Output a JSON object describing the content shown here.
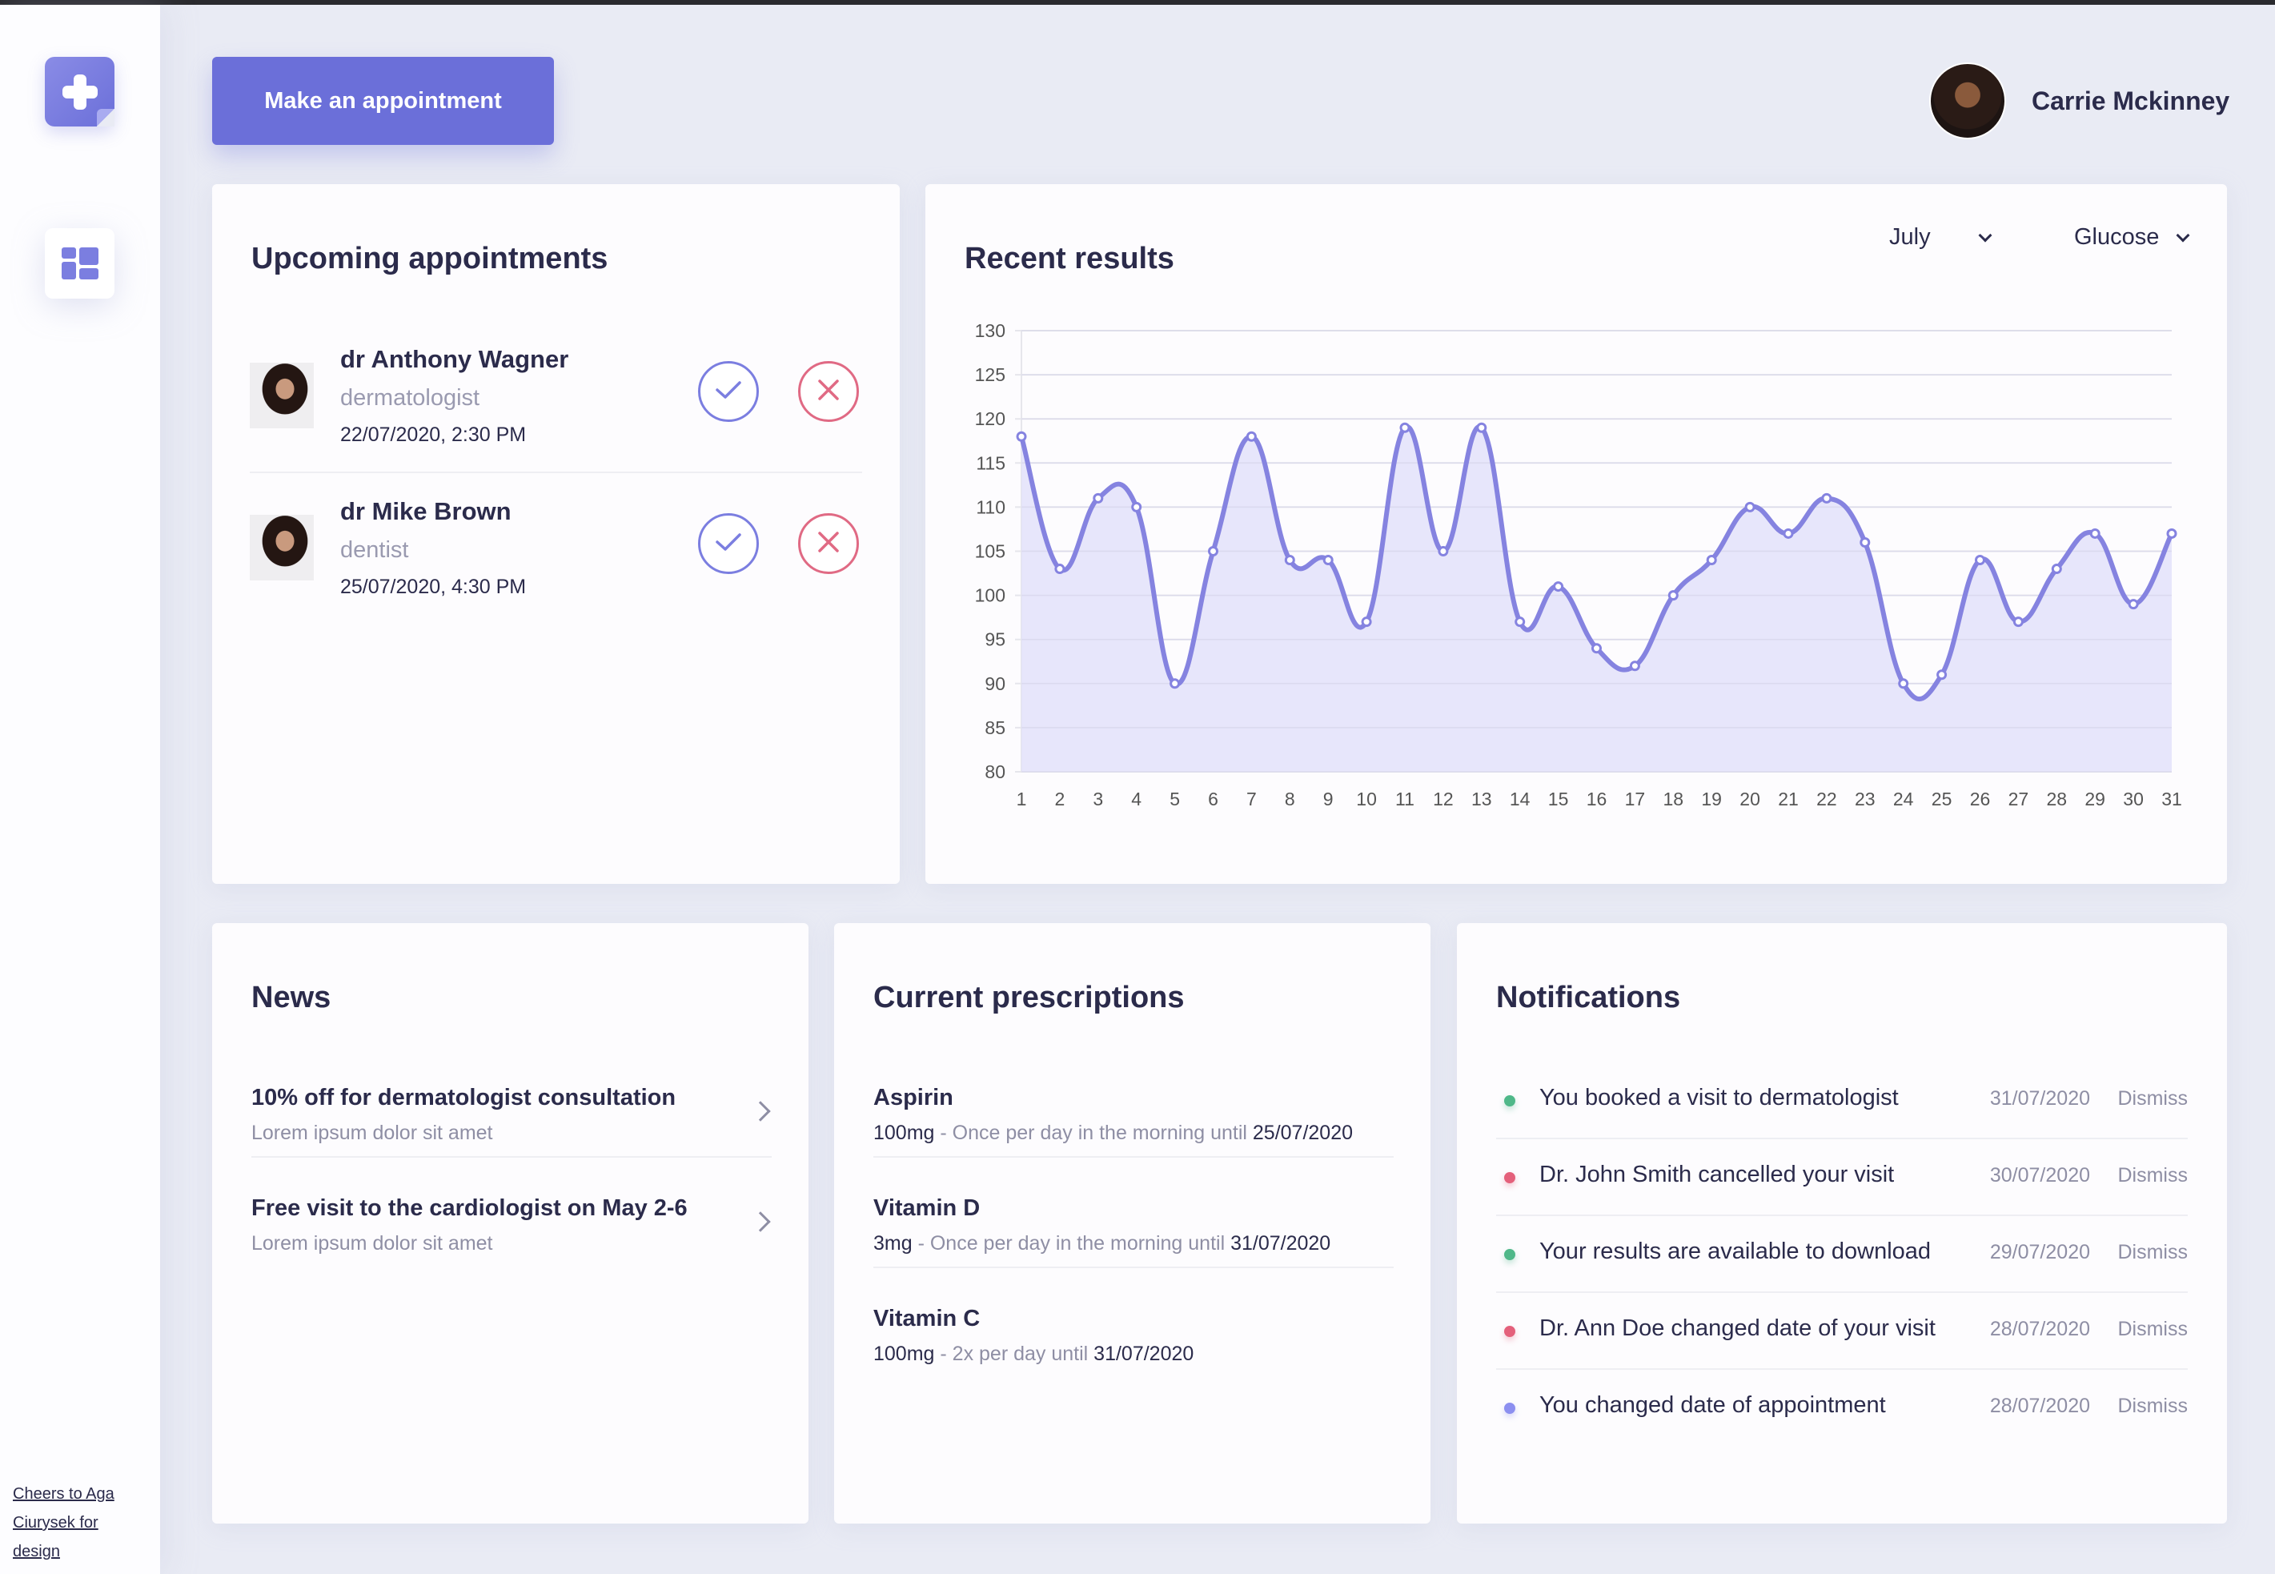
{
  "sidebar": {
    "logo_icon": "medical-plus-icon",
    "nav": [
      {
        "icon": "dashboard-icon",
        "active": true
      }
    ],
    "credit": "Cheers to Aga Ciurysek for design"
  },
  "header": {
    "cta_label": "Make an appointment",
    "user_name": "Carrie Mckinney"
  },
  "upcoming": {
    "title": "Upcoming appointments",
    "items": [
      {
        "name": "dr Anthony Wagner",
        "specialty": "dermatologist",
        "datetime": "22/07/2020, 2:30 PM"
      },
      {
        "name": "dr Mike Brown",
        "specialty": "dentist",
        "datetime": "25/07/2020, 4:30 PM"
      }
    ]
  },
  "results": {
    "title": "Recent results",
    "month": "July",
    "metric": "Glucose"
  },
  "chart_data": {
    "type": "area",
    "x": [
      1,
      2,
      3,
      4,
      5,
      6,
      7,
      8,
      9,
      10,
      11,
      12,
      13,
      14,
      15,
      16,
      17,
      18,
      19,
      20,
      21,
      22,
      23,
      24,
      25,
      26,
      27,
      28,
      29,
      30,
      31
    ],
    "values": [
      118,
      103,
      111,
      110,
      90,
      105,
      118,
      104,
      104,
      97,
      119,
      105,
      119,
      97,
      101,
      94,
      92,
      100,
      104,
      110,
      107,
      111,
      106,
      90,
      91,
      104,
      97,
      103,
      107,
      99,
      107
    ],
    "yticks": [
      80,
      85,
      90,
      95,
      100,
      105,
      110,
      115,
      120,
      125,
      130
    ],
    "ylim": [
      80,
      130
    ],
    "xlim": [
      1,
      31
    ],
    "grid": true,
    "smooth": true,
    "line_color": "#8583e0",
    "fill_color": "#e3e2fa"
  },
  "news": {
    "title": "News",
    "items": [
      {
        "title": "10% off for dermatologist consultation",
        "subtitle": "Lorem ipsum dolor sit amet"
      },
      {
        "title": "Free visit to the cardiologist on May 2-6",
        "subtitle": "Lorem ipsum dolor sit amet"
      }
    ]
  },
  "prescriptions": {
    "title": "Current prescriptions",
    "items": [
      {
        "name": "Aspirin",
        "dose": "100mg",
        "schedule": " - Once per day in the morning until ",
        "until": "25/07/2020"
      },
      {
        "name": "Vitamin D",
        "dose": "3mg",
        "schedule": " - Once per day in the morning until ",
        "until": "31/07/2020"
      },
      {
        "name": "Vitamin C",
        "dose": "100mg",
        "schedule": " - 2x per day until ",
        "until": "31/07/2020"
      }
    ]
  },
  "notifications": {
    "title": "Notifications",
    "dismiss_label": "Dismiss",
    "items": [
      {
        "text": "You booked a visit to dermatologist",
        "date": "31/07/2020",
        "status_color": "#4fb889"
      },
      {
        "text": "Dr. John Smith cancelled your visit",
        "date": "30/07/2020",
        "status_color": "#e4607b"
      },
      {
        "text": "Your results are available to download",
        "date": "29/07/2020",
        "status_color": "#4fb889"
      },
      {
        "text": "Dr. Ann Doe changed date of your visit",
        "date": "28/07/2020",
        "status_color": "#e4607b"
      },
      {
        "text": "You changed date of appointment",
        "date": "28/07/2020",
        "status_color": "#8c8ff0"
      }
    ]
  },
  "colors": {
    "accent": "#6b6fd9",
    "background": "#e9ebf4",
    "text": "#2b2b4b"
  }
}
